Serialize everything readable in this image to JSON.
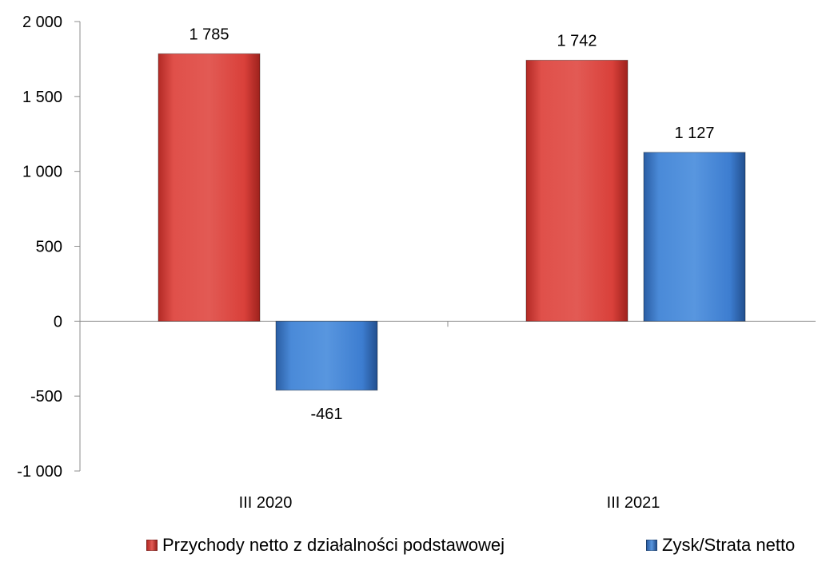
{
  "chart_data": {
    "type": "bar",
    "categories": [
      "III 2020",
      "III 2021"
    ],
    "series": [
      {
        "name": "Przychody netto z działalności podstawowej",
        "values": [
          1785,
          1742
        ],
        "color": "#d9403a",
        "labels": [
          "1 785",
          "1 742"
        ]
      },
      {
        "name": "Zysk/Strata netto",
        "values": [
          -461,
          1127
        ],
        "color": "#3d7dd0",
        "labels": [
          "-461",
          "1 127"
        ]
      }
    ],
    "ylim": [
      -1000,
      2000
    ],
    "yticks": [
      2000,
      1500,
      1000,
      500,
      0,
      -500,
      -1000
    ],
    "ytick_labels": [
      "2 000",
      "1 500",
      "1 000",
      "500",
      "0",
      "-500",
      "-1 000"
    ],
    "title": "",
    "xlabel": "",
    "ylabel": "",
    "grid": false,
    "legend_position": "bottom"
  }
}
